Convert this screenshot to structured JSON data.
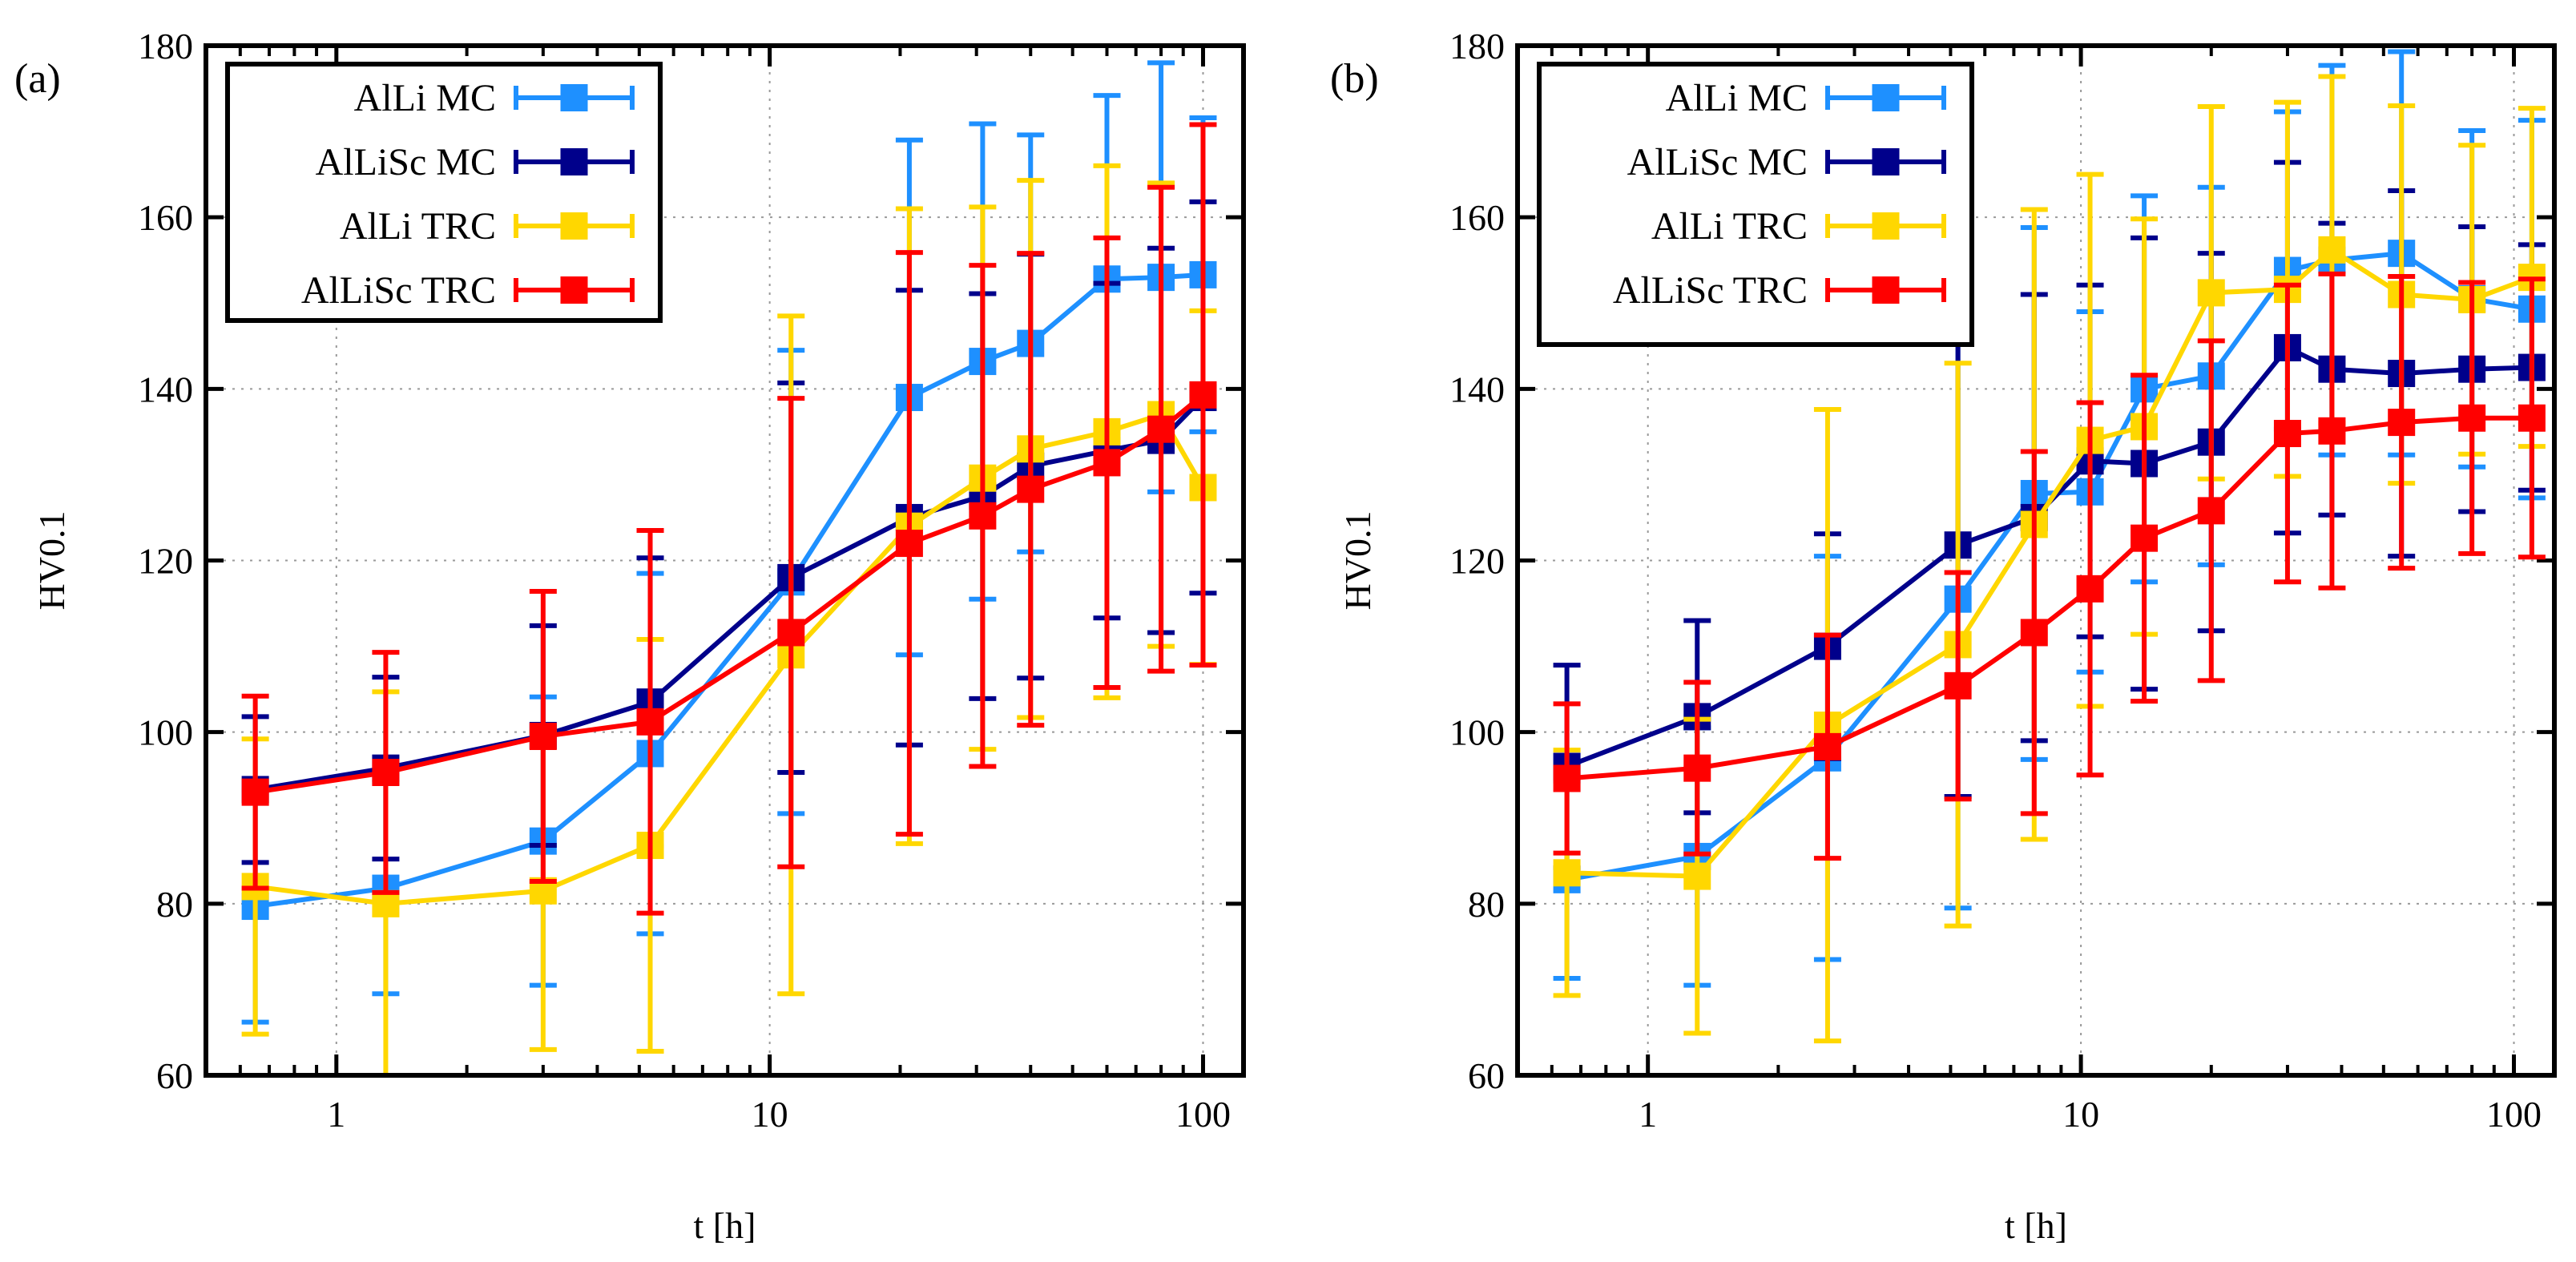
{
  "chart_data": [
    {
      "type": "line",
      "panel_label": "(a)",
      "xlabel": "t [h]",
      "ylabel": "HV0.1",
      "xscale": "log",
      "xlim": [
        0.5,
        124
      ],
      "ylim": [
        60,
        180
      ],
      "xticks": [
        1,
        10,
        100
      ],
      "xtick_labels": [
        "1",
        "10",
        "100"
      ],
      "yticks": [
        60,
        80,
        100,
        120,
        140,
        160,
        180
      ],
      "ytick_labels": [
        "60",
        "80",
        "100",
        "120",
        "140",
        "160",
        "180"
      ],
      "grid": true,
      "legend_position": "top-left",
      "x": [
        0.65,
        1.3,
        3,
        5.3,
        11.2,
        21,
        31,
        40,
        60,
        80,
        100
      ],
      "series": [
        {
          "name": "AlLi MC",
          "color": "#1E90FF",
          "values": [
            79.7,
            81.8,
            87.3,
            97.5,
            117.5,
            139,
            143.2,
            145.3,
            152.8,
            153,
            153.3
          ],
          "yerr": [
            13.5,
            12.3,
            16.8,
            21,
            27,
            30,
            27.7,
            24.3,
            21.4,
            25,
            18.3
          ]
        },
        {
          "name": "AlLiSc MC",
          "color": "#00008B",
          "values": [
            93.3,
            95.8,
            99.6,
            103.5,
            118,
            125,
            127.5,
            131,
            132.8,
            134,
            139
          ],
          "yerr": [
            8.5,
            10.6,
            12.8,
            16.8,
            22.7,
            26.5,
            23.6,
            24.7,
            19.5,
            22.4,
            22.8
          ]
        },
        {
          "name": "AlLi TRC",
          "color": "#FFD700",
          "values": [
            82,
            80,
            81.5,
            86.8,
            109,
            124,
            129.6,
            133,
            135,
            137,
            128.5
          ],
          "yerr": [
            17.2,
            24.7,
            18.5,
            24,
            39.5,
            37,
            31.6,
            31.3,
            31,
            27,
            20.6
          ]
        },
        {
          "name": "AlLiSc TRC",
          "color": "#FF0000",
          "values": [
            93,
            95.3,
            99.5,
            101.2,
            111.6,
            122,
            125.2,
            128.3,
            131.4,
            135.3,
            139.3
          ],
          "yerr": [
            11.2,
            14,
            16.9,
            22.3,
            27.3,
            33.9,
            29.2,
            27.5,
            26.2,
            28.2,
            31.5
          ]
        }
      ]
    },
    {
      "type": "line",
      "panel_label": "(b)",
      "xlabel": "t [h]",
      "ylabel": "HV0.1",
      "xscale": "log",
      "xlim": [
        0.5,
        124
      ],
      "ylim": [
        60,
        180
      ],
      "xticks": [
        1,
        10,
        100
      ],
      "xtick_labels": [
        "1",
        "10",
        "100"
      ],
      "yticks": [
        60,
        80,
        100,
        120,
        140,
        160,
        180
      ],
      "ytick_labels": [
        "60",
        "80",
        "100",
        "120",
        "140",
        "160",
        "180"
      ],
      "grid": true,
      "legend_position": "top-left",
      "x": [
        0.65,
        1.3,
        2.6,
        5.2,
        7.8,
        10.5,
        14,
        20,
        30,
        38,
        55,
        80,
        110
      ],
      "series": [
        {
          "name": "AlLi MC",
          "color": "#1E90FF",
          "values": [
            82.8,
            85.5,
            97,
            115.5,
            127.8,
            128,
            140,
            141.5,
            153.8,
            155,
            155.8,
            150.5,
            149.3
          ],
          "yerr": [
            11.5,
            15,
            23.5,
            36,
            31,
            21,
            22.5,
            22,
            18.5,
            22.7,
            23.5,
            19.6,
            22
          ]
        },
        {
          "name": "AlLiSc MC",
          "color": "#00008B",
          "values": [
            96,
            101.8,
            110,
            121.8,
            125,
            131.6,
            131.3,
            133.8,
            144.8,
            142.3,
            141.8,
            142.3,
            142.5
          ],
          "yerr": [
            11.8,
            11.2,
            13.1,
            29.3,
            26,
            20.5,
            26.3,
            22,
            21.6,
            17,
            21.3,
            16.6,
            14.3
          ]
        },
        {
          "name": "AlLi TRC",
          "color": "#FFD700",
          "values": [
            83.6,
            83.2,
            100.8,
            110.2,
            124.2,
            134,
            135.6,
            151.2,
            151.6,
            156.2,
            151,
            150.4,
            153
          ],
          "yerr": [
            14.3,
            18.3,
            36.8,
            32.8,
            36.7,
            31,
            24.2,
            21.7,
            21.8,
            20.2,
            22,
            18,
            19.7
          ]
        },
        {
          "name": "AlLiSc TRC",
          "color": "#FF0000",
          "values": [
            94.6,
            95.8,
            98.3,
            105.4,
            111.6,
            116.7,
            122.6,
            125.8,
            134.8,
            135.1,
            136.1,
            136.6,
            136.6
          ],
          "yerr": [
            8.7,
            10,
            13,
            13.2,
            21.1,
            21.7,
            19,
            19.8,
            17.3,
            18.3,
            17,
            15.8,
            16.2
          ]
        }
      ]
    }
  ]
}
